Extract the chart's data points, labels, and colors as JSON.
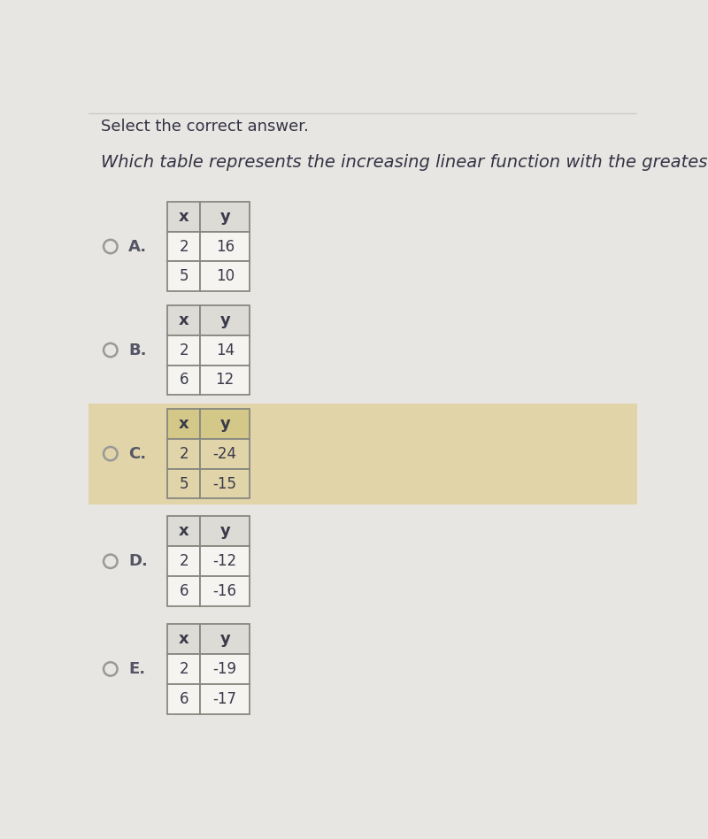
{
  "title_line1": "Select the correct answer.",
  "title_line2": "Which table represents the increasing linear function with the greatest unit rate?",
  "background_color": "#e8e6e2",
  "highlight_band_color": "#e0d4a8",
  "options": [
    {
      "label": "A.",
      "highlight": false,
      "headers": [
        "x",
        "y"
      ],
      "rows": [
        [
          "2",
          "16"
        ],
        [
          "5",
          "10"
        ]
      ]
    },
    {
      "label": "B.",
      "highlight": false,
      "headers": [
        "x",
        "y"
      ],
      "rows": [
        [
          "2",
          "14"
        ],
        [
          "6",
          "12"
        ]
      ]
    },
    {
      "label": "C.",
      "highlight": true,
      "headers": [
        "x",
        "y"
      ],
      "rows": [
        [
          "2",
          "-24"
        ],
        [
          "5",
          "-15"
        ]
      ]
    },
    {
      "label": "D.",
      "highlight": false,
      "headers": [
        "x",
        "y"
      ],
      "rows": [
        [
          "2",
          "-12"
        ],
        [
          "6",
          "-16"
        ]
      ]
    },
    {
      "label": "E.",
      "highlight": false,
      "headers": [
        "x",
        "y"
      ],
      "rows": [
        [
          "2",
          "-19"
        ],
        [
          "6",
          "-17"
        ]
      ]
    }
  ],
  "table_bg": "#f5f4f0",
  "header_bg": "#dddbd5",
  "highlight_table_bg": "#e0d4a8",
  "highlight_header_bg": "#d4c888",
  "border_color": "#888880",
  "text_color": "#3a3a4a",
  "label_color": "#555566",
  "radio_color": "#999999",
  "title1_color": "#333344",
  "title2_color": "#333344"
}
